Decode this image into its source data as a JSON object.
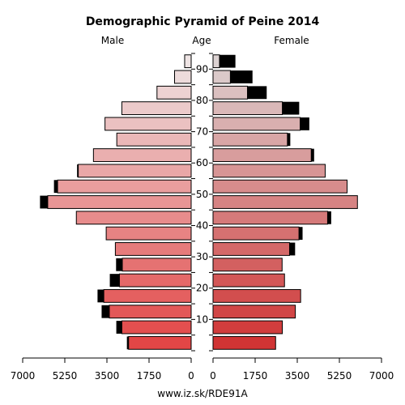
{
  "footer": "www.iz.sk/RDE91A",
  "chart_data": {
    "type": "bar",
    "title": "Demographic Pyramid of Peine 2014",
    "left_label": "Male",
    "center_label": "Age",
    "right_label": "Female",
    "x_range": [
      0,
      7000
    ],
    "x_ticks": [
      {
        "value": 7000,
        "label": "7000"
      },
      {
        "value": 5250,
        "label": "5250"
      },
      {
        "value": 3500,
        "label": "3500"
      },
      {
        "value": 1750,
        "label": "1750"
      },
      {
        "value": 0,
        "label": "0"
      }
    ],
    "age_ticks": [
      "10",
      "20",
      "30",
      "40",
      "50",
      "60",
      "70",
      "80",
      "90"
    ],
    "age_groups": [
      "0-4",
      "5-9",
      "10-14",
      "15-19",
      "20-24",
      "25-29",
      "30-34",
      "35-39",
      "40-44",
      "45-49",
      "50-54",
      "55-59",
      "60-64",
      "65-69",
      "70-74",
      "75-79",
      "80-84",
      "85-89",
      "90+"
    ],
    "series": [
      {
        "name": "Male",
        "values": [
          2600,
          2880,
          3400,
          3630,
          2980,
          2860,
          3150,
          3530,
          4770,
          5960,
          5550,
          4690,
          4060,
          3090,
          3580,
          2880,
          1420,
          690,
          270
        ]
      },
      {
        "name": "Male surplus",
        "values": [
          70,
          230,
          320,
          260,
          400,
          260,
          0,
          0,
          0,
          320,
          150,
          50,
          0,
          0,
          0,
          0,
          0,
          0,
          0
        ]
      },
      {
        "name": "Female",
        "values": [
          2600,
          2880,
          3420,
          3640,
          2970,
          2870,
          3180,
          3570,
          4760,
          6000,
          5570,
          4660,
          4080,
          3090,
          3620,
          2880,
          1430,
          720,
          270
        ]
      },
      {
        "name": "Female surplus",
        "values": [
          0,
          0,
          0,
          0,
          0,
          0,
          230,
          150,
          150,
          0,
          0,
          0,
          120,
          120,
          380,
          700,
          800,
          920,
          660
        ]
      }
    ]
  }
}
